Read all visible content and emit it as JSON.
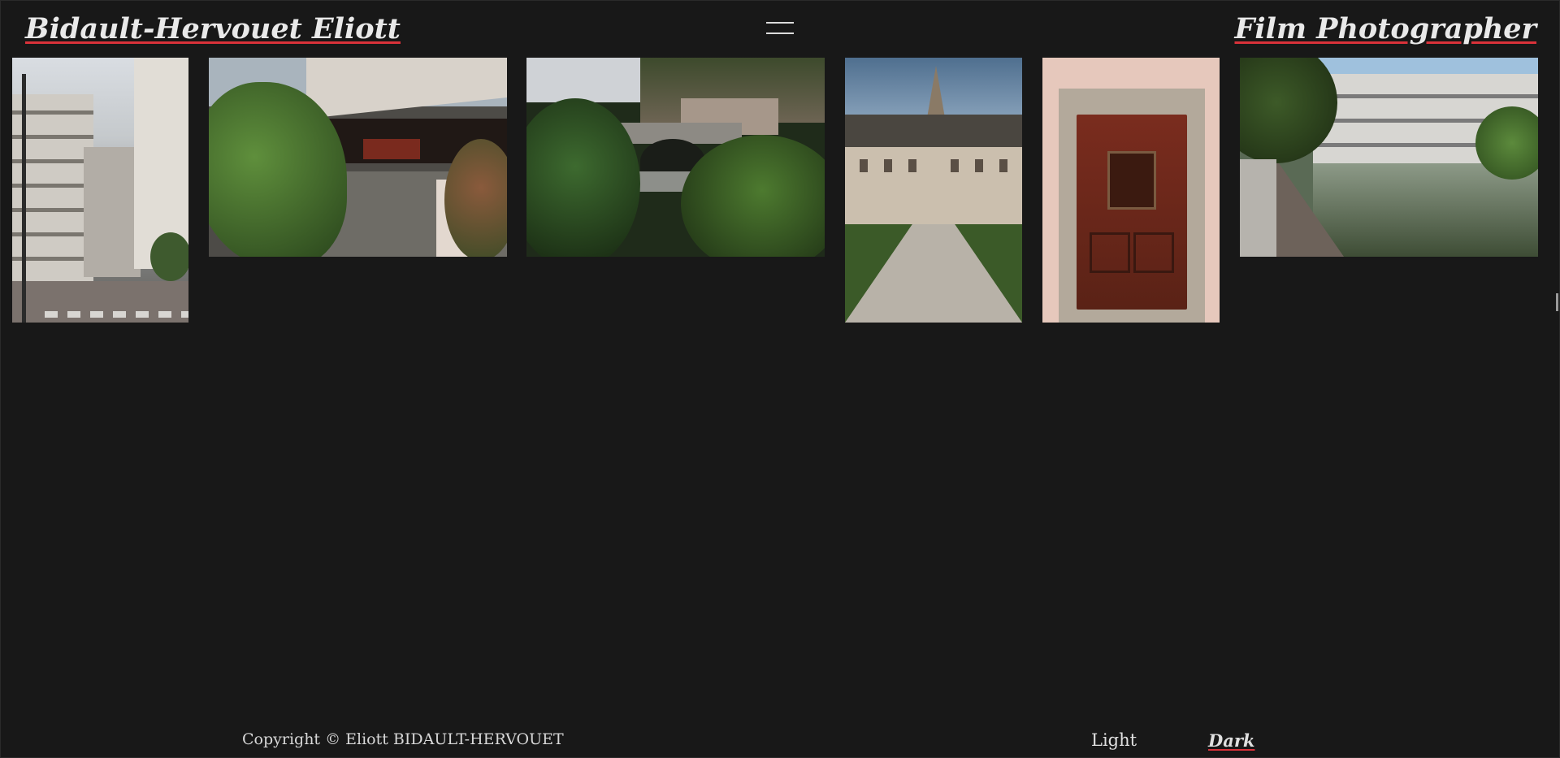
{
  "header": {
    "brand": "Bidault-Hervouet Eliott",
    "tagline": "Film Photographer",
    "menu_icon": "hamburger-menu-icon"
  },
  "gallery": {
    "photos": [
      {
        "subject": "apartment-buildings"
      },
      {
        "subject": "overpass-with-plants"
      },
      {
        "subject": "stone-bridge-river"
      },
      {
        "subject": "chateau-garden"
      },
      {
        "subject": "red-door"
      },
      {
        "subject": "lakeside-building"
      }
    ]
  },
  "footer": {
    "copyright": "Copyright © Eliott BIDAULT-HERVOUET",
    "theme_light": "Light",
    "theme_dark": "Dark",
    "active_theme": "Dark"
  },
  "colors": {
    "background": "#181818",
    "accent_underline": "#d9323a",
    "text": "#e6e6e6"
  }
}
